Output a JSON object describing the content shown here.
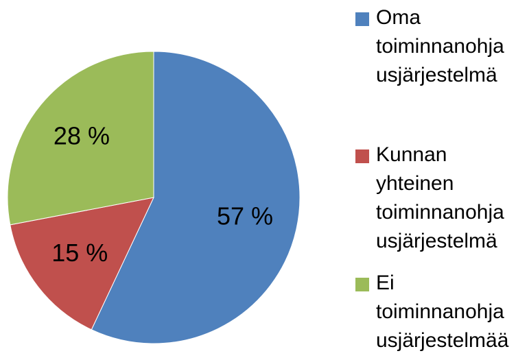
{
  "chart_data": {
    "type": "pie",
    "categories": [
      "Oma toiminnanohjausjärjestelmä",
      "Kunnan yhteinen toiminnanohjausjärjestelmä",
      "Ei toiminnanohjausjärjestelmää"
    ],
    "values": [
      57,
      15,
      28
    ],
    "value_labels": [
      "57 %",
      "15 %",
      "28 %"
    ],
    "colors": [
      "#4f81bd",
      "#c0504d",
      "#9bbb59"
    ]
  }
}
